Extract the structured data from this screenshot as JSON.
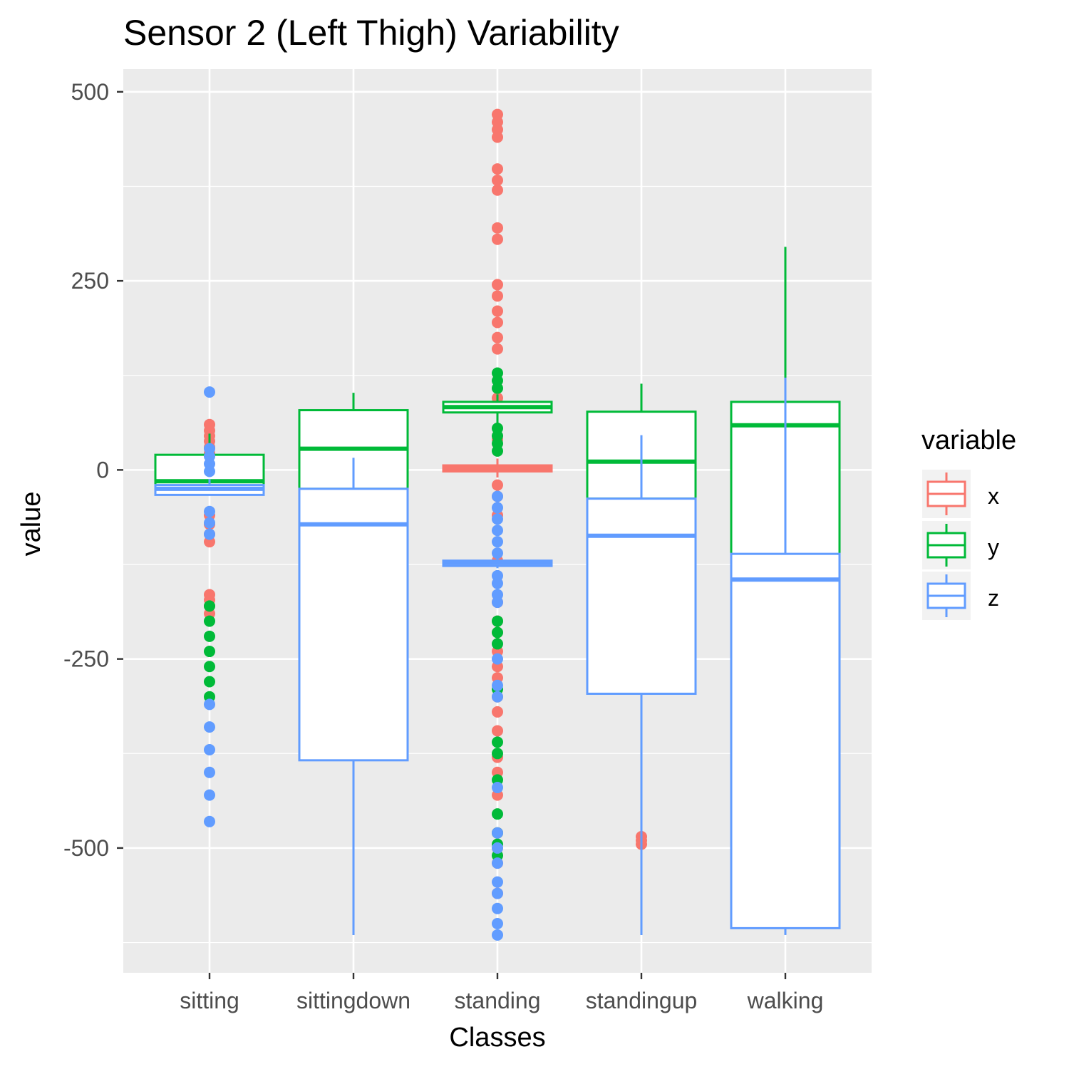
{
  "chart_data": {
    "type": "boxplot",
    "title": "Sensor 2 (Left Thigh) Variability",
    "xlabel": "Classes",
    "ylabel": "value",
    "ylim": [
      -665,
      530
    ],
    "yticks": [
      -500,
      -250,
      0,
      250,
      500
    ],
    "ytick_labels": [
      "-500",
      "-250",
      "0",
      "250",
      "500"
    ],
    "categories": [
      "sitting",
      "sittingdown",
      "standing",
      "standingup",
      "walking"
    ],
    "grid": true,
    "legend": {
      "title": "variable",
      "position": "right",
      "entries": [
        "x",
        "y",
        "z"
      ]
    },
    "series": [
      {
        "name": "x",
        "color": "#F8766D",
        "boxes": [
          {
            "q1": -25,
            "median": -18,
            "q3": -12,
            "whisker_low": -30,
            "whisker_high": -5,
            "outliers": [
              60,
              52,
              45,
              38,
              30,
              22,
              -60,
              -72,
              -85,
              -95,
              -165,
              -172,
              -180,
              -190
            ]
          },
          {
            "q1": -25,
            "median": -20,
            "q3": -15,
            "whisker_low": -28,
            "whisker_high": -10,
            "outliers": []
          },
          {
            "q1": -2,
            "median": 2,
            "q3": 6,
            "whisker_low": -10,
            "whisker_high": 15,
            "outliers": [
              470,
              460,
              450,
              440,
              398,
              383,
              370,
              320,
              305,
              245,
              230,
              210,
              195,
              175,
              160,
              95,
              40,
              -20,
              -35,
              -60,
              -120,
              -175,
              -200,
              -215,
              -240,
              -260,
              -275,
              -300,
              -320,
              -345,
              -380,
              -400,
              -430,
              -480,
              -500,
              -520,
              -560
            ]
          },
          {
            "q1": -40,
            "median": -38,
            "q3": -36,
            "whisker_low": -42,
            "whisker_high": -34,
            "outliers": [
              -485,
              -490,
              -495
            ]
          },
          {
            "q1": -115,
            "median": -112,
            "q3": -110,
            "whisker_low": -118,
            "whisker_high": -108,
            "outliers": []
          }
        ]
      },
      {
        "name": "y",
        "color": "#00BA38",
        "boxes": [
          {
            "q1": -30,
            "median": -15,
            "q3": 20,
            "whisker_low": -30,
            "whisker_high": 48,
            "outliers": [
              -180,
              -200,
              -220,
              -240,
              -260,
              -280,
              -300
            ]
          },
          {
            "q1": -25,
            "median": 28,
            "q3": 79,
            "whisker_low": -25,
            "whisker_high": 102,
            "outliers": []
          },
          {
            "q1": 76,
            "median": 83,
            "q3": 90,
            "whisker_low": 62,
            "whisker_high": 100,
            "outliers": [
              128,
              118,
              108,
              55,
              45,
              35,
              25,
              -200,
              -215,
              -230,
              -290,
              -360,
              -375,
              -410,
              -455,
              -480,
              -495,
              -510
            ]
          },
          {
            "q1": -38,
            "median": 11,
            "q3": 77,
            "whisker_low": -38,
            "whisker_high": 114,
            "outliers": []
          },
          {
            "q1": -112,
            "median": 59,
            "q3": 90,
            "whisker_low": -112,
            "whisker_high": 295,
            "outliers": []
          }
        ]
      },
      {
        "name": "z",
        "color": "#619CFF",
        "boxes": [
          {
            "q1": -33,
            "median": -25,
            "q3": -20,
            "whisker_low": -33,
            "whisker_high": -12,
            "outliers": [
              103,
              28,
              18,
              8,
              -2,
              -55,
              -70,
              -85,
              -310,
              -340,
              -370,
              -400,
              -430,
              -465
            ]
          },
          {
            "q1": -384,
            "median": -72,
            "q3": -25,
            "whisker_low": -615,
            "whisker_high": 16,
            "outliers": []
          },
          {
            "q1": -127,
            "median": -123,
            "q3": -120,
            "whisker_low": -130,
            "whisker_high": -115,
            "outliers": [
              -35,
              -50,
              -65,
              -80,
              -95,
              -110,
              -140,
              -150,
              -165,
              -175,
              -250,
              -285,
              -300,
              -420,
              -480,
              -500,
              -520,
              -545,
              -560,
              -580,
              -600,
              -615
            ]
          },
          {
            "q1": -296,
            "median": -87,
            "q3": -38,
            "whisker_low": -615,
            "whisker_high": 46,
            "outliers": []
          },
          {
            "q1": -606,
            "median": -145,
            "q3": -111,
            "whisker_low": -615,
            "whisker_high": 122,
            "outliers": []
          }
        ]
      }
    ]
  }
}
